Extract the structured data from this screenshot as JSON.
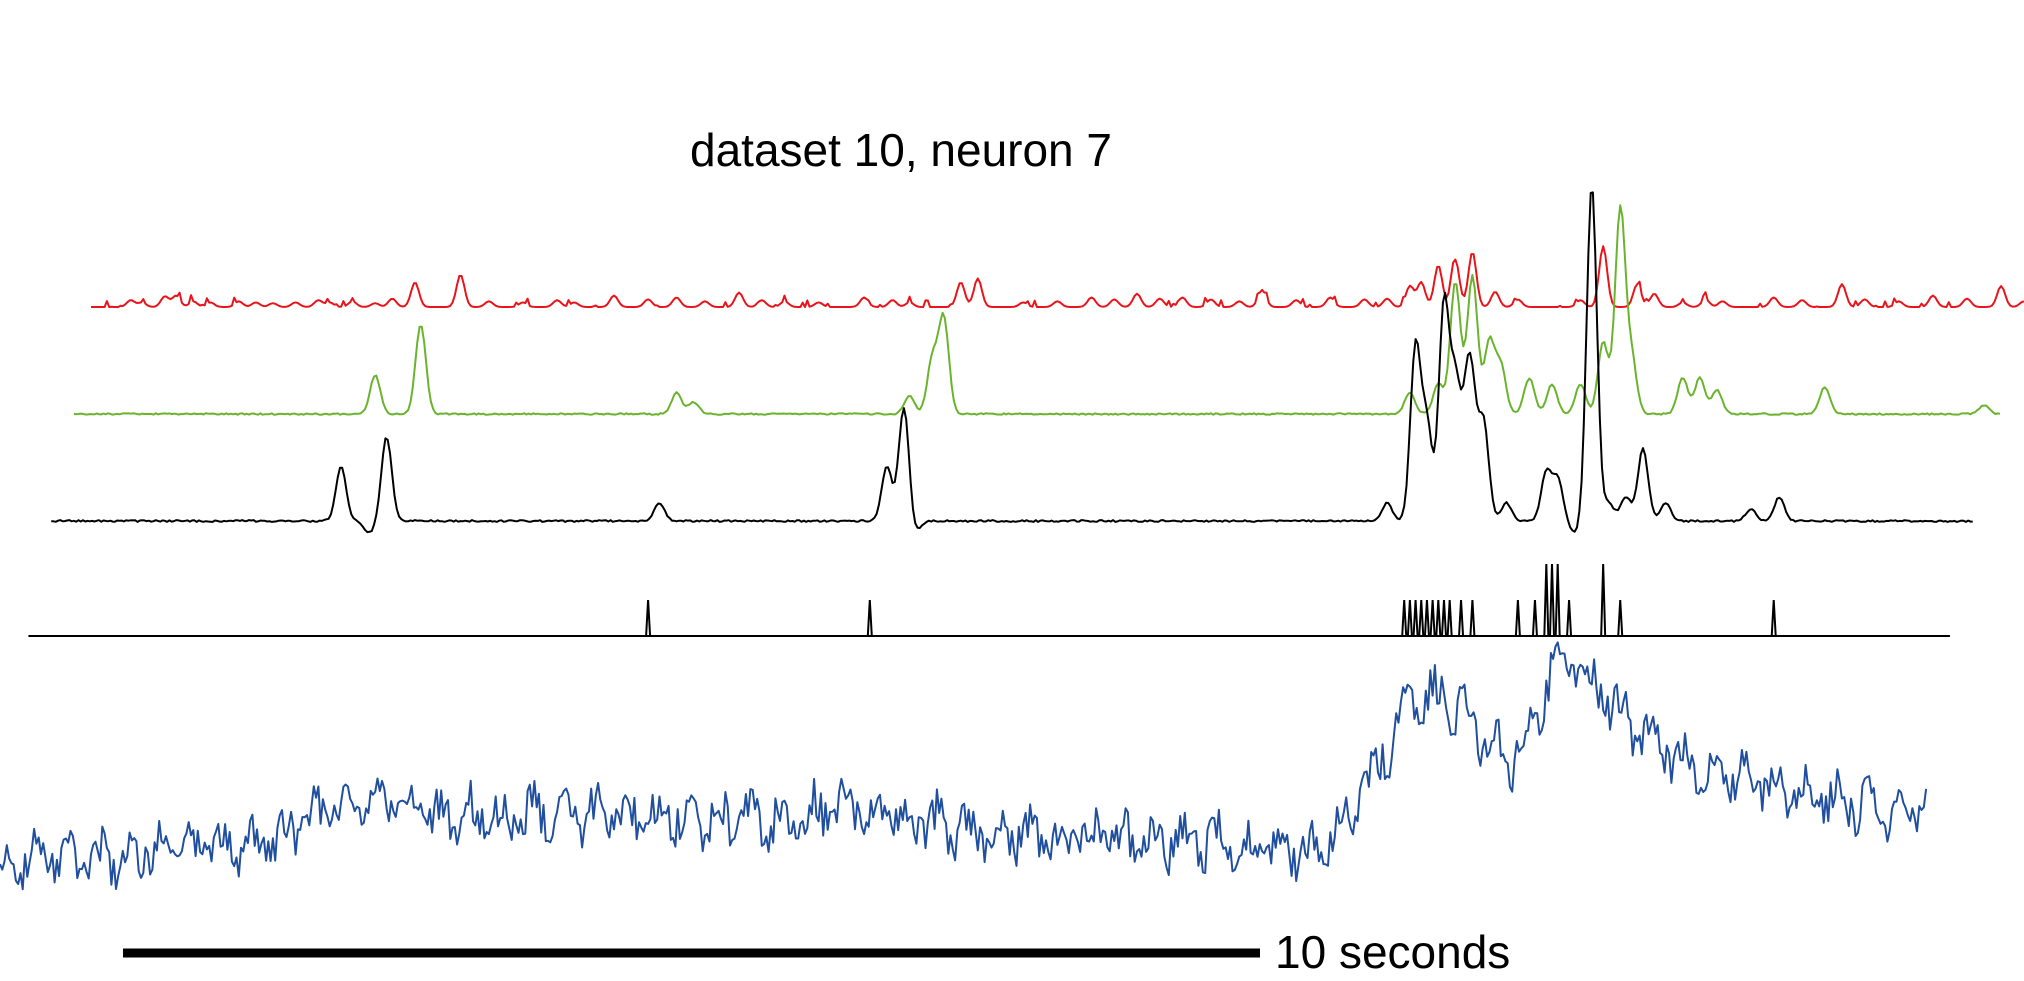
{
  "chart_data": {
    "type": "line",
    "title": "dataset 10, neuron 7",
    "scale_bar": {
      "label": "10 seconds",
      "seconds": 10
    },
    "time_range_seconds": [
      -0.8,
      17.0
    ],
    "grid": false,
    "legend": "none",
    "series": [
      {
        "color": "#e8141a",
        "kind": "peaks",
        "x_start": 0.0,
        "x_end": 17.0,
        "peaks": [
          [
            0.35,
            0.18
          ],
          [
            0.45,
            0.12
          ],
          [
            0.65,
            0.28
          ],
          [
            0.75,
            0.3
          ],
          [
            0.9,
            0.15
          ],
          [
            1.05,
            0.12
          ],
          [
            1.3,
            0.15
          ],
          [
            1.45,
            0.12
          ],
          [
            1.6,
            0.1
          ],
          [
            1.8,
            0.12
          ],
          [
            2.0,
            0.18
          ],
          [
            2.1,
            0.12
          ],
          [
            2.3,
            0.15
          ],
          [
            2.5,
            0.1
          ],
          [
            2.65,
            0.22
          ],
          [
            2.85,
            0.65
          ],
          [
            3.25,
            0.85
          ],
          [
            3.5,
            0.15
          ],
          [
            3.8,
            0.12
          ],
          [
            4.1,
            0.18
          ],
          [
            4.25,
            0.12
          ],
          [
            4.6,
            0.3
          ],
          [
            4.9,
            0.2
          ],
          [
            5.15,
            0.25
          ],
          [
            5.4,
            0.15
          ],
          [
            5.7,
            0.38
          ],
          [
            5.9,
            0.18
          ],
          [
            6.1,
            0.15
          ],
          [
            6.4,
            0.12
          ],
          [
            6.8,
            0.25
          ],
          [
            7.05,
            0.18
          ],
          [
            7.2,
            0.12
          ],
          [
            7.65,
            0.65
          ],
          [
            7.8,
            0.75
          ],
          [
            8.2,
            0.12
          ],
          [
            8.5,
            0.15
          ],
          [
            8.8,
            0.25
          ],
          [
            9.0,
            0.2
          ],
          [
            9.2,
            0.35
          ],
          [
            9.4,
            0.22
          ],
          [
            9.6,
            0.25
          ],
          [
            9.85,
            0.2
          ],
          [
            10.1,
            0.15
          ],
          [
            10.3,
            0.45
          ],
          [
            10.6,
            0.18
          ],
          [
            10.9,
            0.25
          ],
          [
            11.2,
            0.2
          ],
          [
            11.4,
            0.22
          ],
          [
            11.6,
            0.55
          ],
          [
            11.7,
            0.65
          ],
          [
            11.85,
            1.1
          ],
          [
            12.0,
            1.25
          ],
          [
            12.15,
            1.45
          ],
          [
            12.35,
            0.4
          ],
          [
            12.55,
            0.2
          ],
          [
            13.1,
            0.18
          ],
          [
            13.3,
            1.6
          ],
          [
            13.6,
            0.6
          ],
          [
            13.75,
            0.35
          ],
          [
            14.0,
            0.12
          ],
          [
            14.2,
            0.2
          ],
          [
            14.35,
            0.15
          ],
          [
            14.8,
            0.25
          ],
          [
            15.05,
            0.18
          ],
          [
            15.4,
            0.6
          ],
          [
            15.6,
            0.2
          ],
          [
            15.9,
            0.15
          ],
          [
            16.2,
            0.3
          ],
          [
            16.5,
            0.22
          ],
          [
            16.8,
            0.55
          ],
          [
            17.0,
            0.15
          ]
        ]
      },
      {
        "color": "#6ab42d",
        "kind": "trace",
        "x_start": -0.15,
        "x_end": 16.8,
        "peaks": [
          [
            2.5,
            0.65
          ],
          [
            2.9,
            1.5
          ],
          [
            5.15,
            0.35
          ],
          [
            5.3,
            0.2
          ],
          [
            7.2,
            0.3
          ],
          [
            7.4,
            0.9
          ],
          [
            7.5,
            1.6
          ],
          [
            11.6,
            0.35
          ],
          [
            11.85,
            0.5
          ],
          [
            12.0,
            2.2
          ],
          [
            12.15,
            2.3
          ],
          [
            12.3,
            1.2
          ],
          [
            12.4,
            0.8
          ],
          [
            12.65,
            0.6
          ],
          [
            12.85,
            0.5
          ],
          [
            13.1,
            0.5
          ],
          [
            13.3,
            1.2
          ],
          [
            13.45,
            3.4
          ],
          [
            13.55,
            0.9
          ],
          [
            14.0,
            0.6
          ],
          [
            14.15,
            0.6
          ],
          [
            14.3,
            0.4
          ],
          [
            15.25,
            0.45
          ],
          [
            16.65,
            0.15
          ]
        ]
      },
      {
        "color": "#000000",
        "kind": "trace",
        "x_start": -0.35,
        "x_end": 16.55,
        "peaks": [
          [
            2.2,
            0.9
          ],
          [
            2.6,
            1.4
          ],
          [
            2.45,
            -0.2
          ],
          [
            5.0,
            0.3
          ],
          [
            7.0,
            0.9
          ],
          [
            7.15,
            1.9
          ],
          [
            7.25,
            -0.2
          ],
          [
            11.4,
            0.3
          ],
          [
            11.65,
            2.9
          ],
          [
            11.75,
            1.6
          ],
          [
            11.9,
            3.6
          ],
          [
            12.0,
            2.2
          ],
          [
            12.1,
            1.6
          ],
          [
            12.15,
            1.6
          ],
          [
            12.25,
            1.6
          ],
          [
            12.45,
            0.3
          ],
          [
            12.8,
            0.8
          ],
          [
            12.9,
            0.7
          ],
          [
            13.05,
            -0.2
          ],
          [
            13.2,
            5.6
          ],
          [
            13.35,
            0.3
          ],
          [
            13.5,
            0.4
          ],
          [
            13.65,
            1.2
          ],
          [
            13.85,
            0.3
          ],
          [
            14.6,
            0.2
          ],
          [
            14.85,
            0.4
          ]
        ]
      },
      {
        "color": "#000000",
        "kind": "spikes",
        "x_start": -0.55,
        "x_end": 16.35,
        "spike_times": [
          4.9,
          6.85,
          11.55,
          11.6,
          11.65,
          11.7,
          11.75,
          11.8,
          11.85,
          11.9,
          11.95,
          12.05,
          12.15,
          12.55,
          12.7,
          12.8,
          12.85,
          12.9,
          13.0,
          13.3,
          13.45,
          14.8
        ],
        "spike_heights": [
          0.8,
          0.8,
          0.8,
          0.8,
          0.8,
          0.8,
          0.8,
          0.8,
          0.8,
          0.8,
          0.8,
          0.8,
          0.8,
          0.8,
          0.8,
          1.6,
          1.6,
          1.6,
          0.8,
          1.6,
          0.8,
          0.8
        ]
      },
      {
        "color": "#1f4f9e",
        "kind": "fluorescence",
        "x_start": -0.8,
        "x_end": 16.15,
        "levels": [
          [
            -0.8,
            0.0
          ],
          [
            0.5,
            0.05
          ],
          [
            1.5,
            0.1
          ],
          [
            2.0,
            0.25
          ],
          [
            2.4,
            0.35
          ],
          [
            3.0,
            0.25
          ],
          [
            4.0,
            0.25
          ],
          [
            5.0,
            0.25
          ],
          [
            6.0,
            0.22
          ],
          [
            6.7,
            0.3
          ],
          [
            7.0,
            0.25
          ],
          [
            8.0,
            0.15
          ],
          [
            9.0,
            0.12
          ],
          [
            10.0,
            0.1
          ],
          [
            10.7,
            0.05
          ],
          [
            11.0,
            0.2
          ],
          [
            11.3,
            0.5
          ],
          [
            11.6,
            0.85
          ],
          [
            11.9,
            0.9
          ],
          [
            12.2,
            0.7
          ],
          [
            12.5,
            0.55
          ],
          [
            12.7,
            0.75
          ],
          [
            12.9,
            1.15
          ],
          [
            13.1,
            1.0
          ],
          [
            13.4,
            0.85
          ],
          [
            13.6,
            0.7
          ],
          [
            14.0,
            0.55
          ],
          [
            14.5,
            0.45
          ],
          [
            15.0,
            0.38
          ],
          [
            15.5,
            0.3
          ],
          [
            16.15,
            0.25
          ]
        ]
      }
    ]
  }
}
